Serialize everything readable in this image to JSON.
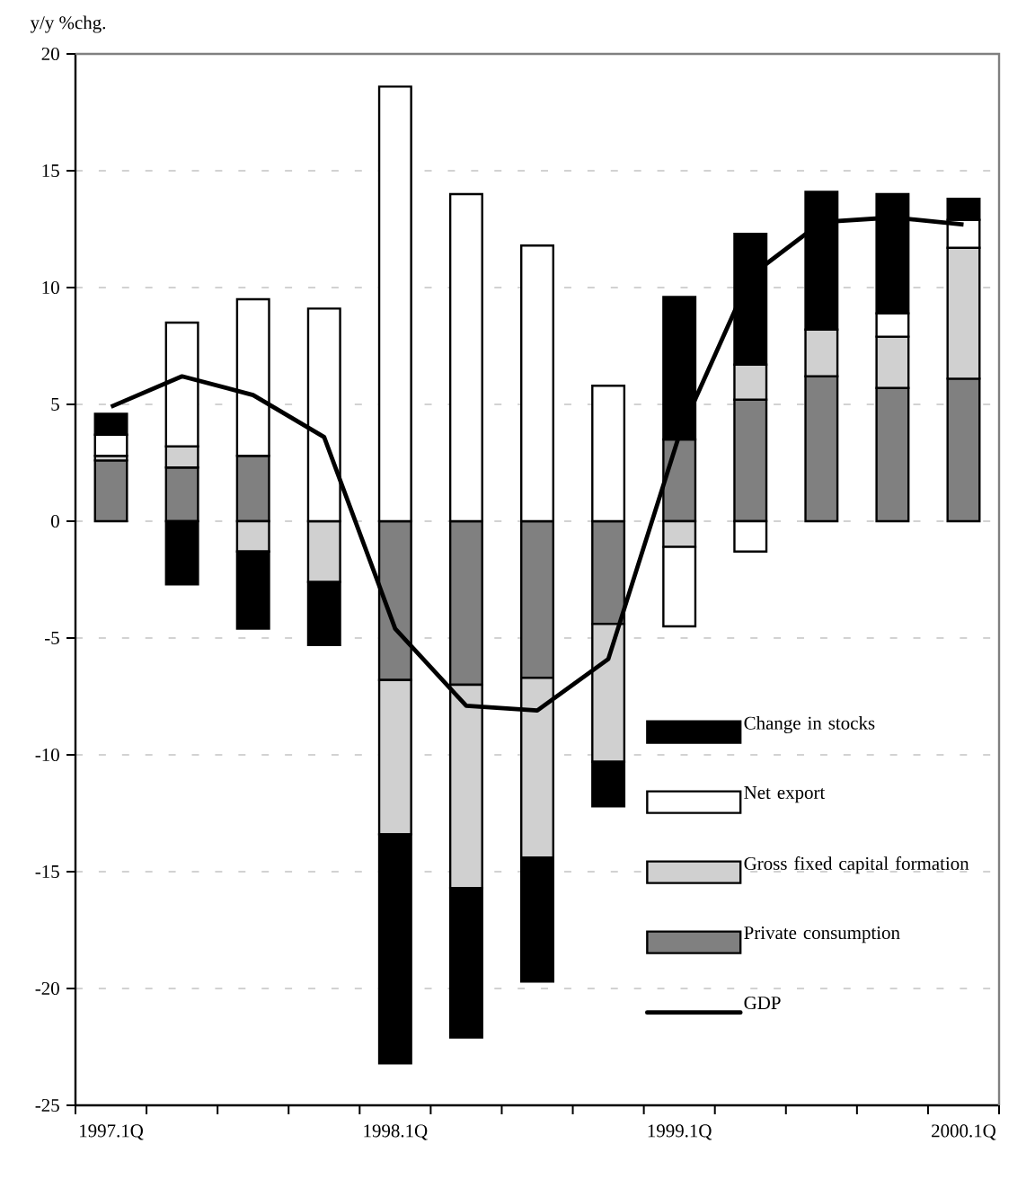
{
  "chart_data": {
    "type": "bar",
    "ylabel": "y/y %chg.",
    "stacked": true,
    "grid": "y",
    "legend": "bottom right",
    "categories": [
      "1997.1Q",
      null,
      null,
      null,
      "1998.1Q",
      null,
      null,
      null,
      "1999.1Q",
      null,
      null,
      null,
      "2000.1Q"
    ],
    "ylim": [
      -25,
      20
    ],
    "yticks": [
      -25,
      -20,
      -15,
      -10,
      -5,
      0,
      5,
      10,
      15,
      20
    ],
    "series": [
      {
        "name": "Private consumption",
        "color": "#808080",
        "values": [
          2.6,
          2.3,
          2.8,
          0,
          -6.8,
          -7.0,
          -6.7,
          -4.4,
          3.5,
          5.2,
          6.2,
          5.7,
          6.1
        ]
      },
      {
        "name": "Gross fixed capital formation",
        "color": "#d0d0d0",
        "values": [
          0.2,
          0.9,
          -1.3,
          -2.6,
          -6.6,
          -8.7,
          -7.7,
          -5.9,
          -1.1,
          1.5,
          2.0,
          2.2,
          5.6
        ]
      },
      {
        "name": "Net export",
        "color": "#ffffff",
        "values": [
          0.9,
          5.3,
          6.7,
          9.1,
          18.6,
          14.0,
          11.8,
          5.8,
          -3.4,
          -1.3,
          0,
          1.0,
          1.2
        ]
      },
      {
        "name": "Change in stocks",
        "color": "#000000",
        "values": [
          0.9,
          -2.7,
          -3.3,
          -2.7,
          -9.8,
          -6.4,
          -5.3,
          -1.9,
          6.1,
          5.6,
          5.9,
          5.1,
          0.9
        ]
      },
      {
        "name": "GDP",
        "type": "line",
        "color": "#000000",
        "values": [
          4.9,
          6.2,
          5.4,
          3.6,
          -4.6,
          -7.9,
          -8.1,
          -5.9,
          3.7,
          10.5,
          12.8,
          13.0,
          12.7
        ]
      }
    ]
  }
}
